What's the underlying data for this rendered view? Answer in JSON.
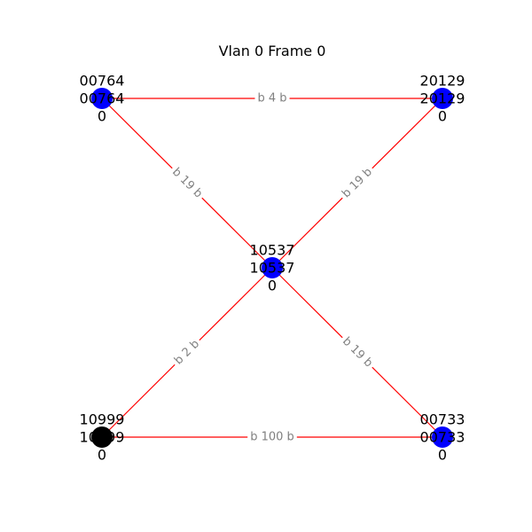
{
  "title": "Vlan 0 Frame 0",
  "colors": {
    "edge": "#ff0000",
    "node_default": "#0000ff",
    "node_root": "#000000",
    "edge_label_text": "#808080"
  },
  "nodes": [
    {
      "id": "n00764",
      "lines": [
        "00764",
        "00764",
        "0"
      ],
      "color": "#0000ff"
    },
    {
      "id": "n20129",
      "lines": [
        "20129",
        "20129",
        "0"
      ],
      "color": "#0000ff"
    },
    {
      "id": "n10537",
      "lines": [
        "10537",
        "10537",
        "0"
      ],
      "color": "#0000ff"
    },
    {
      "id": "n10999",
      "lines": [
        "10999",
        "10999",
        "0"
      ],
      "color": "#000000"
    },
    {
      "id": "n00733",
      "lines": [
        "00733",
        "00733",
        "0"
      ],
      "color": "#0000ff"
    }
  ],
  "edges": [
    {
      "from": "n00764",
      "to": "n20129",
      "label": "b 4 b"
    },
    {
      "from": "n00764",
      "to": "n10537",
      "label": "b 19 b"
    },
    {
      "from": "n20129",
      "to": "n10537",
      "label": "b 19 b"
    },
    {
      "from": "n10537",
      "to": "n10999",
      "label": "b 2 b"
    },
    {
      "from": "n10537",
      "to": "n00733",
      "label": "b 19 b"
    },
    {
      "from": "n10999",
      "to": "n00733",
      "label": "b 100 b"
    }
  ]
}
